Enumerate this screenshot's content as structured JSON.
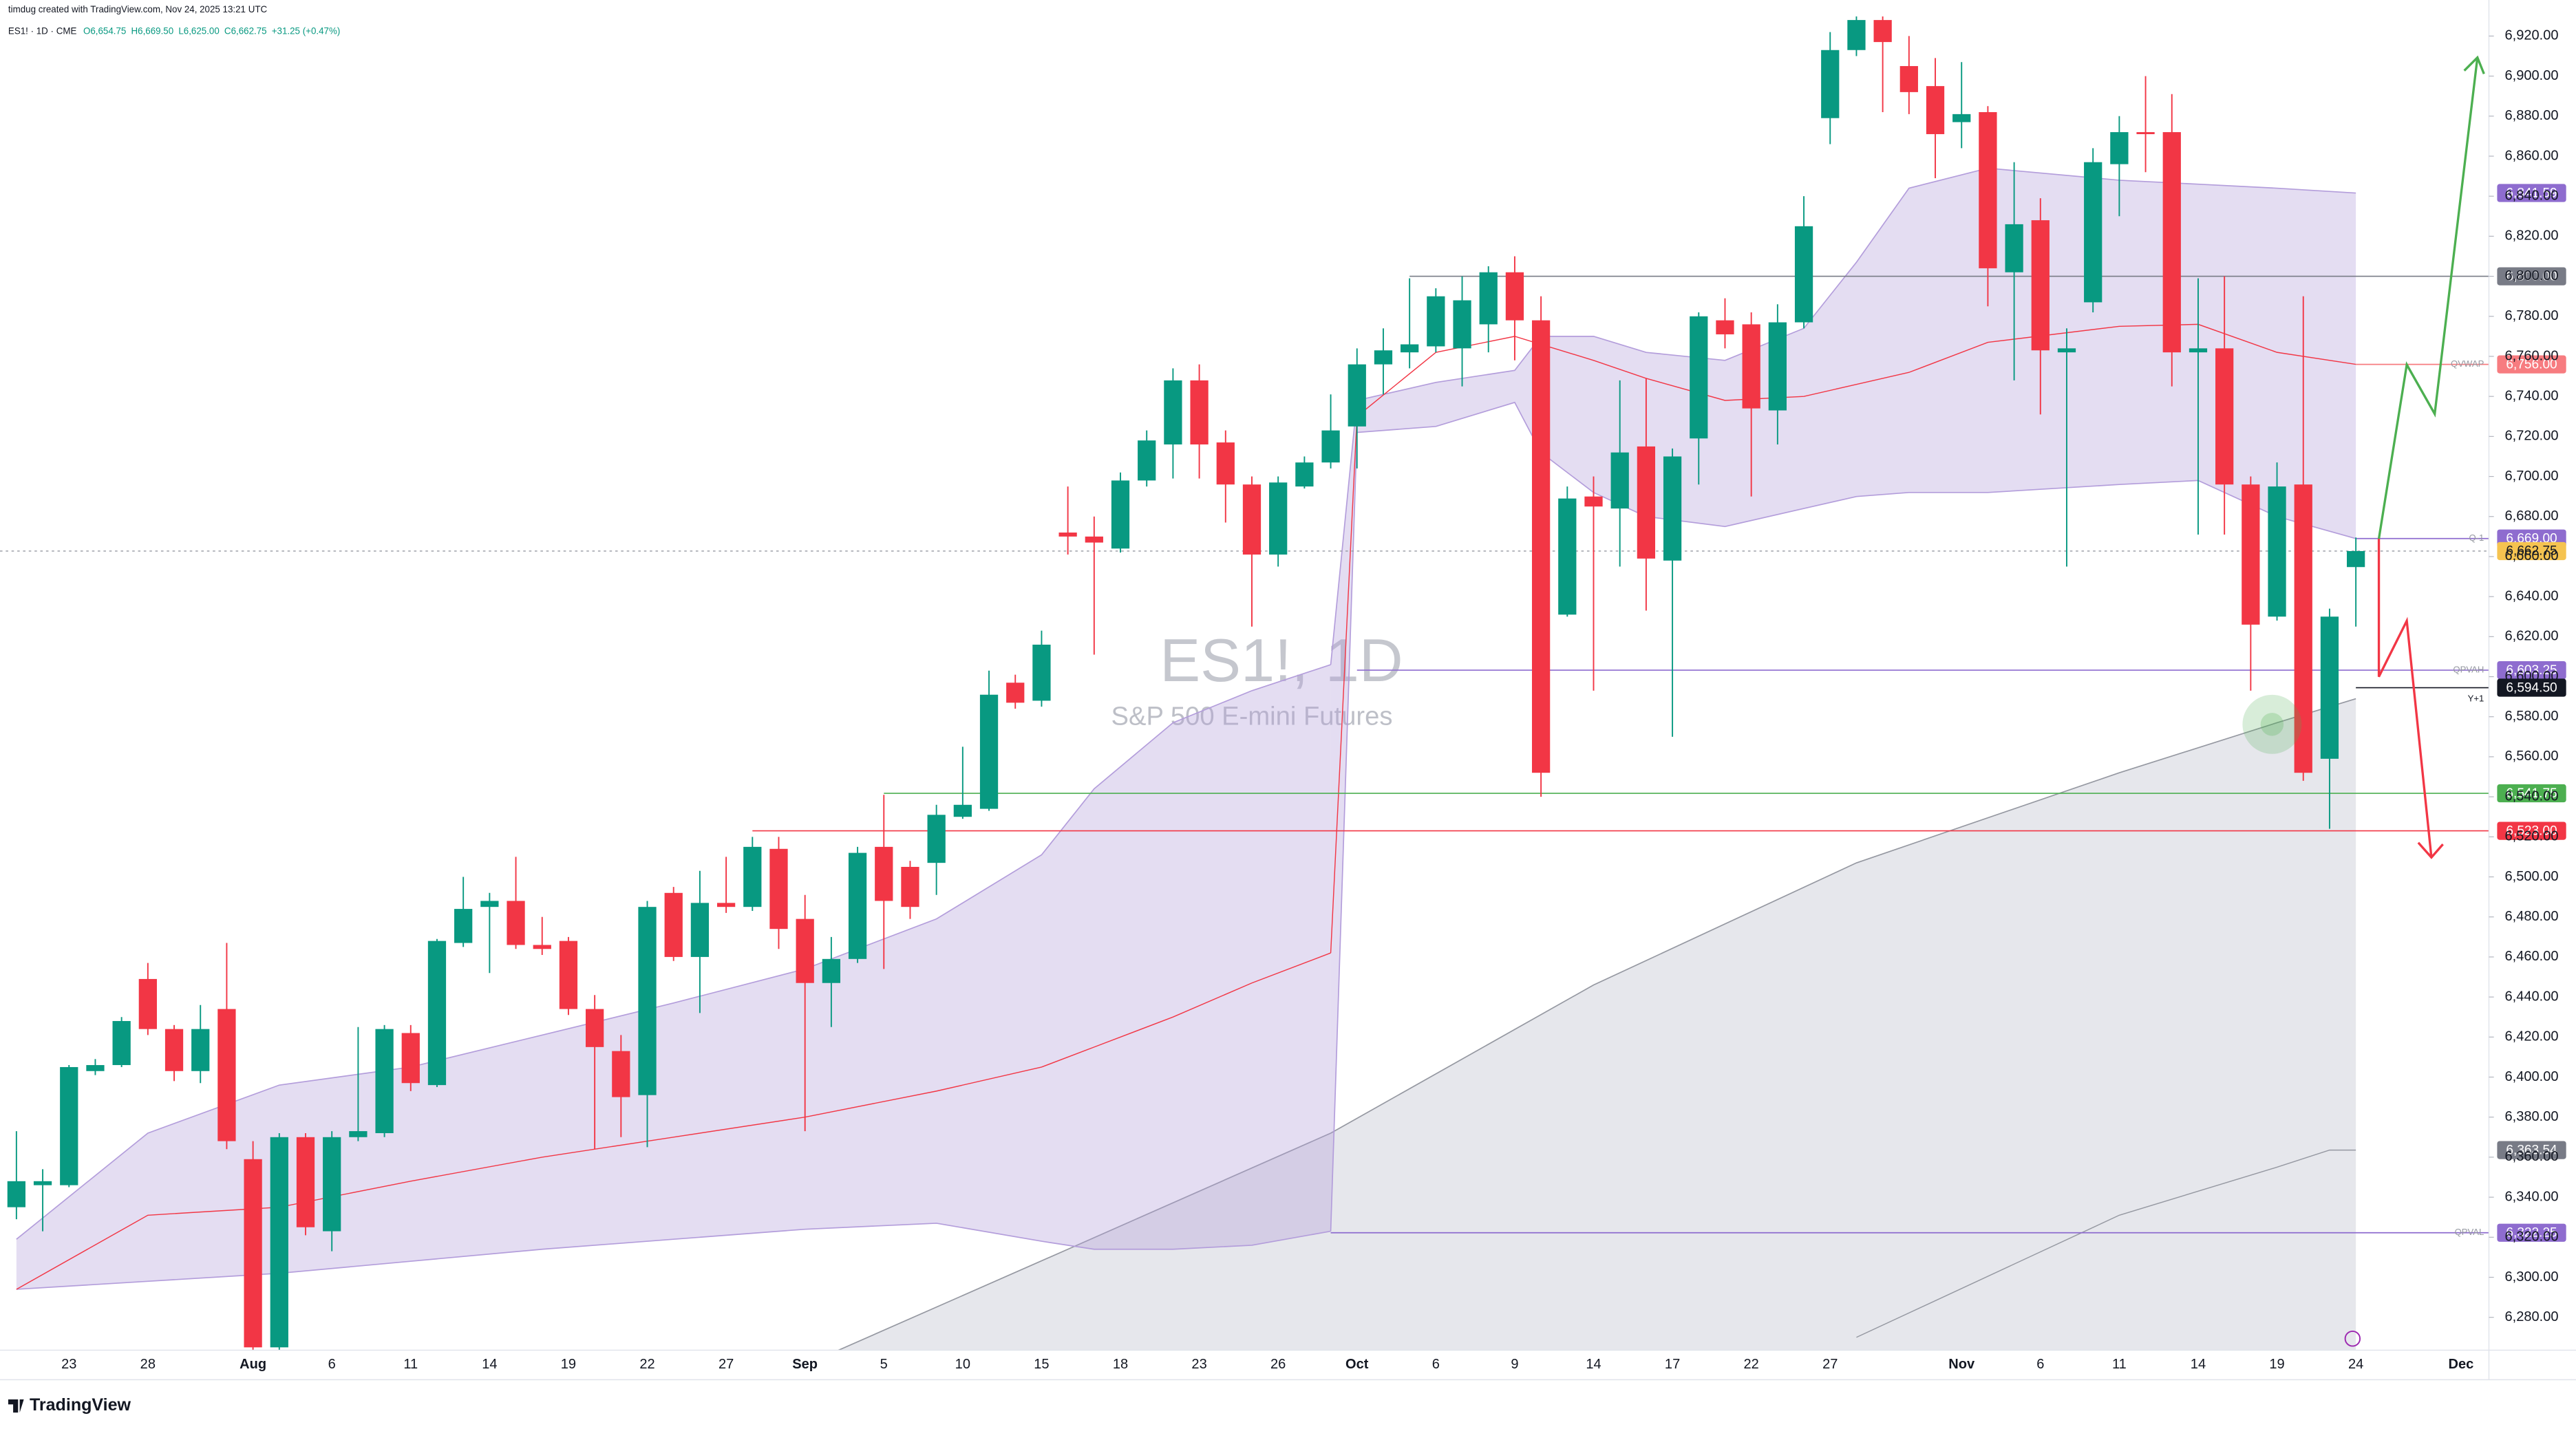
{
  "header": {
    "credit": "timdug created with TradingView.com, Nov 24, 2025 13:21 UTC",
    "symbol": "ES1! · 1D · CME",
    "ohlc": [
      "O6,654.75",
      "H6,669.50",
      "L6,625.00",
      "C6,662.75",
      "+31.25 (+0.47%)"
    ],
    "logo": "TradingView"
  },
  "chart_data": {
    "type": "candlestick",
    "title": "ES1!, 1D",
    "subtitle": "S&P 500 E-mini Futures",
    "up_color": "#089981",
    "down_color": "#f23645",
    "categories": [
      null,
      null,
      "23",
      null,
      null,
      "28",
      null,
      null,
      null,
      "Aug",
      null,
      null,
      "6",
      null,
      null,
      "11",
      null,
      null,
      "14",
      null,
      null,
      "19",
      null,
      null,
      "22",
      null,
      null,
      "27",
      null,
      null,
      "Sep",
      null,
      null,
      "5",
      null,
      null,
      "10",
      null,
      null,
      "15",
      null,
      null,
      "18",
      null,
      null,
      "23",
      null,
      null,
      "26",
      null,
      null,
      "Oct",
      null,
      null,
      "6",
      null,
      null,
      "9",
      null,
      null,
      "14",
      null,
      null,
      "17",
      null,
      null,
      "22",
      null,
      null,
      "27",
      null,
      null,
      null,
      null,
      "Nov",
      null,
      null,
      "6",
      null,
      null,
      "11",
      null,
      null,
      "14",
      null,
      null,
      "19",
      null,
      null,
      "24",
      null,
      null,
      null,
      "Dec"
    ],
    "open": [
      6335,
      6346,
      6346,
      6403,
      6406,
      6449,
      6424,
      6403,
      6434,
      6359,
      6265,
      6370,
      6323,
      6370,
      6372,
      6422,
      6396,
      6467,
      6485,
      6488,
      6466,
      6468,
      6434,
      6413,
      6391,
      6492,
      6460,
      6487,
      6485,
      6514,
      6479,
      6447,
      6459,
      6515,
      6505,
      6507,
      6530,
      6534,
      6597,
      6588,
      6672,
      6670,
      6664,
      6698,
      6716,
      6748,
      6717,
      6696,
      6661,
      6695,
      6707,
      6725,
      6756,
      6762,
      6765,
      6764,
      6776,
      6802,
      6778,
      6631,
      6690,
      6684,
      6715,
      6658,
      6719,
      6778,
      6776,
      6733,
      6777,
      6879,
      6913,
      6928,
      6905,
      6895,
      6877,
      6882,
      6802,
      6828,
      6762,
      6787,
      6856,
      6872,
      6872,
      6762,
      6764,
      6696,
      6630,
      6696,
      6559,
      6654.75,
      null,
      null,
      null,
      null
    ],
    "high": [
      6373,
      6354,
      6406,
      6409,
      6430,
      6457,
      6426,
      6436,
      6467,
      6368,
      6372,
      6372,
      6373,
      6425,
      6426,
      6426,
      6469,
      6500,
      6492,
      6510,
      6480,
      6470,
      6441,
      6421,
      6488,
      6495,
      6503,
      6510,
      6520,
      6520,
      6491,
      6470,
      6515,
      6541,
      6508,
      6536,
      6565,
      6603,
      6601,
      6623,
      6695,
      6680,
      6702,
      6723,
      6754,
      6756,
      6723,
      6700,
      6700,
      6710,
      6741,
      6764,
      6774,
      6799,
      6794,
      6800,
      6805,
      6810,
      6790,
      6695,
      6700,
      6748,
      6749,
      6714,
      6782,
      6789,
      6782,
      6786,
      6840,
      6922,
      6932,
      6934,
      6920,
      6909,
      6907,
      6885,
      6857,
      6839,
      6774,
      6864,
      6880,
      6900,
      6891,
      6799,
      6800,
      6700,
      6707,
      6790,
      6634,
      6669.5,
      null,
      null,
      null,
      null
    ],
    "low": [
      6329,
      6323,
      6345,
      6401,
      6405,
      6421,
      6398,
      6397,
      6364,
      6262,
      6262,
      6321,
      6313,
      6368,
      6370,
      6393,
      6395,
      6465,
      6452,
      6464,
      6461,
      6431,
      6364,
      6370,
      6365,
      6458,
      6432,
      6482,
      6483,
      6464,
      6373,
      6425,
      6457,
      6454,
      6479,
      6491,
      6529,
      6533,
      6584,
      6585,
      6661,
      6611,
      6662,
      6695,
      6699,
      6699,
      6677,
      6625,
      6655,
      6694,
      6704,
      6704,
      6741,
      6754,
      6762,
      6745,
      6762,
      6758,
      6540,
      6630,
      6593,
      6655,
      6633,
      6570,
      6696,
      6764,
      6690,
      6716,
      6774,
      6866,
      6910,
      6882,
      6881,
      6849,
      6864,
      6785,
      6748,
      6731,
      6655,
      6782,
      6830,
      6852,
      6745,
      6671,
      6671,
      6593,
      6628,
      6548,
      6524,
      6625,
      null,
      null,
      null,
      null
    ],
    "close": [
      6348,
      6348,
      6405,
      6406,
      6428,
      6424,
      6403,
      6424,
      6368,
      6265,
      6370,
      6325,
      6370,
      6373,
      6424,
      6397,
      6468,
      6484,
      6488,
      6466,
      6464,
      6434,
      6415,
      6390,
      6485,
      6460,
      6487,
      6485,
      6515,
      6474,
      6447,
      6459,
      6512,
      6488,
      6485,
      6531,
      6536,
      6591,
      6587,
      6616,
      6670,
      6667,
      6698,
      6718,
      6748,
      6716,
      6696,
      6661,
      6697,
      6707,
      6723,
      6756,
      6763,
      6766,
      6790,
      6788,
      6802,
      6778,
      6552,
      6689,
      6685,
      6712,
      6659,
      6710,
      6780,
      6771,
      6734,
      6777,
      6825,
      6913,
      6928,
      6917,
      6892,
      6871,
      6881,
      6804,
      6826,
      6763,
      6764,
      6857,
      6872,
      6871,
      6762,
      6764,
      6696,
      6626,
      6695,
      6552,
      6630,
      6662.75,
      null,
      null,
      null,
      null
    ],
    "ylim": [
      6263.6,
      6929.8
    ],
    "yticks": [
      {
        "value": 6280,
        "label": "6,280.00"
      },
      {
        "value": 6300,
        "label": "6,300.00"
      },
      {
        "value": 6320,
        "label": "6,320.00"
      },
      {
        "value": 6340,
        "label": "6,340.00"
      },
      {
        "value": 6360,
        "label": "6,360.00"
      },
      {
        "value": 6380,
        "label": "6,380.00"
      },
      {
        "value": 6400,
        "label": "6,400.00"
      },
      {
        "value": 6420,
        "label": "6,420.00"
      },
      {
        "value": 6440,
        "label": "6,440.00"
      },
      {
        "value": 6460,
        "label": "6,460.00"
      },
      {
        "value": 6480,
        "label": "6,480.00"
      },
      {
        "value": 6500,
        "label": "6,500.00"
      },
      {
        "value": 6520,
        "label": "6,520.00"
      },
      {
        "value": 6540,
        "label": "6,540.00"
      },
      {
        "value": 6560,
        "label": "6,560.00"
      },
      {
        "value": 6580,
        "label": "6,580.00"
      },
      {
        "value": 6600,
        "label": "6,600.00"
      },
      {
        "value": 6620,
        "label": "6,620.00"
      },
      {
        "value": 6640,
        "label": "6,640.00"
      },
      {
        "value": 6660,
        "label": "6,660.00"
      },
      {
        "value": 6680,
        "label": "6,680.00"
      },
      {
        "value": 6700,
        "label": "6,700.00"
      },
      {
        "value": 6720,
        "label": "6,720.00"
      },
      {
        "value": 6740,
        "label": "6,740.00"
      },
      {
        "value": 6760,
        "label": "6,760.00"
      },
      {
        "value": 6780,
        "label": "6,780.00"
      },
      {
        "value": 6800,
        "label": "6,800.00"
      },
      {
        "value": 6820,
        "label": "6,820.00"
      },
      {
        "value": 6840,
        "label": "6,840.00"
      },
      {
        "value": 6860,
        "label": "6,860.00"
      },
      {
        "value": 6880,
        "label": "6,880.00"
      },
      {
        "value": 6900,
        "label": "6,900.00"
      },
      {
        "value": 6920,
        "label": "6,920.00"
      }
    ],
    "grid": false,
    "areas": [
      {
        "color": "#d1d4dc",
        "x": [
          31,
          40,
          50,
          60,
          70,
          80,
          86,
          89
        ],
        "values": [
          6262,
          6314,
          6372,
          6446,
          6507,
          6552,
          6577,
          6589
        ]
      }
    ],
    "lines": [
      {
        "color": "#9598a1",
        "x": [
          70,
          80,
          86,
          88,
          89
        ],
        "values": [
          6270,
          6331,
          6355,
          6363.54,
          6363.54
        ]
      }
    ],
    "bands": [
      {
        "color": "#b39ddb",
        "middle_color": "#f23645",
        "x": [
          0,
          5,
          10,
          15,
          20,
          25,
          30,
          35,
          39,
          41,
          44,
          47,
          50
        ],
        "upper": [
          6319,
          6372,
          6396,
          6405,
          6421,
          6437,
          6454,
          6479,
          6511,
          6544,
          6577,
          6593,
          6606
        ],
        "middle": [
          6294,
          6331,
          6335,
          6348,
          6360,
          6370,
          6380,
          6393,
          6405,
          6415,
          6430,
          6447,
          6462
        ],
        "lower": [
          6294,
          6298,
          6302,
          6308,
          6314,
          6319,
          6324,
          6327,
          6318,
          6314,
          6314,
          6316,
          6323
        ]
      },
      {
        "color": "#b39ddb",
        "middle_color": "#f23645",
        "x": [
          50,
          51,
          54,
          57,
          58,
          60,
          62,
          65,
          68,
          70,
          72,
          75,
          80,
          83,
          86,
          89
        ],
        "upper": [
          6606,
          6738,
          6747,
          6753,
          6770,
          6770,
          6762,
          6758,
          6774,
          6807,
          6844,
          6854,
          6848,
          6846,
          6844,
          6841.59
        ],
        "middle": [
          6462,
          6730,
          6762,
          6770,
          6766,
          6758,
          6749,
          6738,
          6740,
          6746,
          6752,
          6767,
          6775,
          6776,
          6762,
          6756
        ],
        "lower": [
          6323,
          6722,
          6725,
          6737,
          6712,
          6692,
          6680,
          6675,
          6684,
          6690,
          6692,
          6692,
          6696,
          6698,
          6680,
          6669
        ]
      }
    ],
    "levels": [
      {
        "value": 6841.59,
        "label": "6,841.59",
        "color": "#8e6ccf"
      },
      {
        "value": 6800,
        "label": "6,800.00",
        "color": "#787b86",
        "from": 53
      },
      {
        "value": 6756,
        "label": "6,756.00",
        "color": "#f77c80",
        "from": 89,
        "tag": "QVWAP"
      },
      {
        "value": 6669,
        "label": "6,669.00",
        "color": "#8e6ccf",
        "from": 89,
        "tag": "Q-1"
      },
      {
        "value": 6662.75,
        "label": "6,662.75",
        "color": "#f5c350",
        "text_color": "#131722",
        "from": 0,
        "style": "dotted"
      },
      {
        "value": 6603.25,
        "label": "6,603.25",
        "color": "#8e6ccf",
        "from": 51,
        "tag": "QPVAH"
      },
      {
        "value": 6594.5,
        "label": "6,594.50",
        "color": "#131722",
        "from": 89,
        "tag": "Y+1"
      },
      {
        "value": 6541.75,
        "label": "6,541.75",
        "color": "#4caf50",
        "from": 33
      },
      {
        "value": 6523,
        "label": "6,523.00",
        "color": "#f23645",
        "from": 28
      },
      {
        "value": 6363.54,
        "label": "6,363.54",
        "color": "#787b86"
      },
      {
        "value": 6322.25,
        "label": "6,322.25",
        "color": "#8e6ccf",
        "from": 50,
        "tag": "QPVAL"
      }
    ]
  }
}
